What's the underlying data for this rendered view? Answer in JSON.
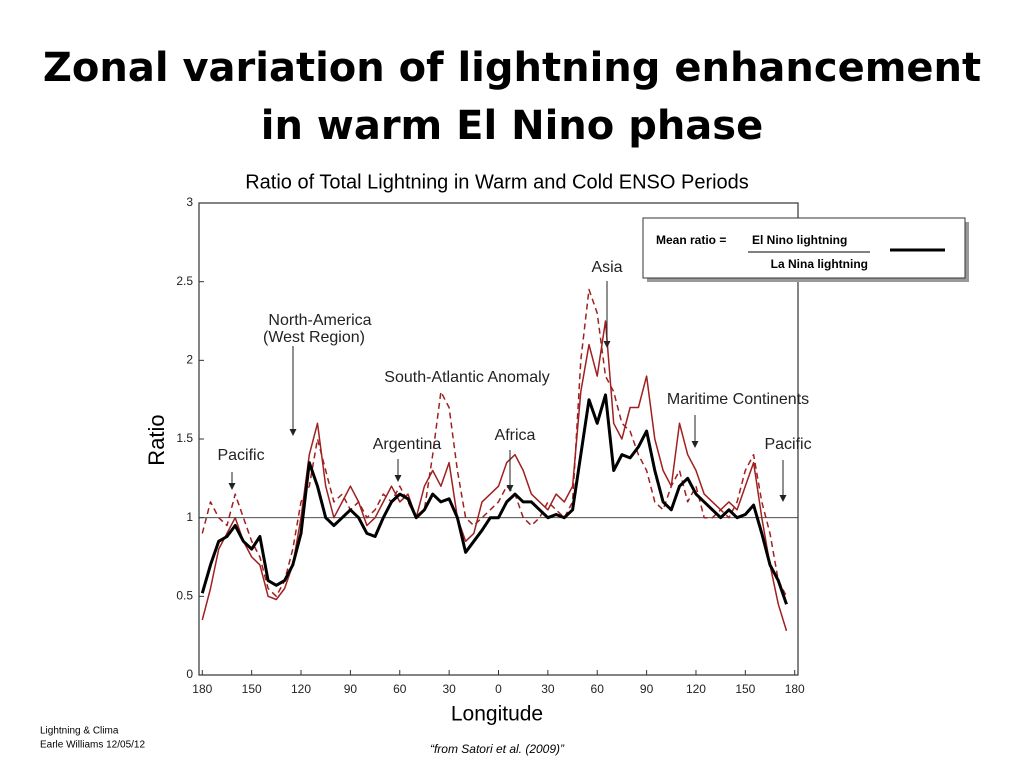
{
  "title": [
    "Zonal variation of lightning enhancement",
    "in warm El Nino phase"
  ],
  "footer": {
    "left": [
      "Lightning & Clima",
      "Earle Williams 12/05/12"
    ],
    "center": "“from Satori et al. (2009)”"
  },
  "chart_data": {
    "type": "line",
    "title": "Ratio of Total Lightning in Warm and Cold ENSO Periods",
    "x_label": "Longitude",
    "y_label": "Ratio",
    "legend": {
      "label": "Mean ratio =",
      "numerator": "El Nino lightning",
      "denominator": "La Nina lightning"
    },
    "annotations": [
      "Pacific",
      "North-America",
      "(West Region)",
      "South-Atlantic Anomaly",
      "Argentina",
      "Africa",
      "Asia",
      "Maritime Continents",
      "Pacific"
    ],
    "hline": 1,
    "xlim": [
      -182,
      182
    ],
    "ylim": [
      0,
      3
    ],
    "xticks": [
      {
        "value": -180,
        "label": "180"
      },
      {
        "value": -150,
        "label": "150"
      },
      {
        "value": -120,
        "label": "120"
      },
      {
        "value": -90,
        "label": "90"
      },
      {
        "value": -60,
        "label": "60"
      },
      {
        "value": -30,
        "label": "30"
      },
      0,
      30,
      60,
      90,
      120,
      150,
      180
    ],
    "yticks": [
      0,
      0.5,
      1,
      1.5,
      2,
      2.5,
      3
    ],
    "x": [
      -180,
      -175,
      -170,
      -165,
      -160,
      -155,
      -150,
      -145,
      -140,
      -135,
      -130,
      -125,
      -120,
      -115,
      -110,
      -105,
      -100,
      -95,
      -90,
      -85,
      -80,
      -75,
      -70,
      -65,
      -60,
      -55,
      -50,
      -45,
      -40,
      -35,
      -30,
      -25,
      -20,
      -15,
      -10,
      -5,
      0,
      5,
      10,
      15,
      20,
      25,
      30,
      35,
      40,
      45,
      50,
      55,
      60,
      65,
      70,
      75,
      80,
      85,
      90,
      95,
      100,
      105,
      110,
      115,
      120,
      125,
      130,
      135,
      140,
      145,
      150,
      155,
      160,
      165,
      170,
      175
    ],
    "series": [
      {
        "color": "#a02020",
        "dash": "6,4",
        "values": [
          0.9,
          1.1,
          1.0,
          0.95,
          1.15,
          1.0,
          0.85,
          0.75,
          0.55,
          0.5,
          0.6,
          0.8,
          1.1,
          1.2,
          1.5,
          1.3,
          1.1,
          1.15,
          1.05,
          1.1,
          1.0,
          1.05,
          1.15,
          1.1,
          1.2,
          1.1,
          1.0,
          1.05,
          1.4,
          1.8,
          1.7,
          1.3,
          1.0,
          0.95,
          1.0,
          1.05,
          1.1,
          1.2,
          1.15,
          1.0,
          0.95,
          1.0,
          1.1,
          1.05,
          1.0,
          1.1,
          2.0,
          2.45,
          2.3,
          1.9,
          1.8,
          1.6,
          1.55,
          1.4,
          1.3,
          1.1,
          1.05,
          1.2,
          1.3,
          1.1,
          1.2,
          1.0,
          1.0,
          1.05,
          1.0,
          1.1,
          1.3,
          1.4,
          1.1,
          0.9,
          0.6,
          0.5
        ]
      },
      {
        "color": "#a02020",
        "values": [
          0.35,
          0.55,
          0.8,
          0.9,
          1.0,
          0.85,
          0.75,
          0.7,
          0.5,
          0.48,
          0.55,
          0.7,
          1.0,
          1.4,
          1.6,
          1.2,
          1.0,
          1.1,
          1.2,
          1.1,
          0.95,
          1.0,
          1.1,
          1.2,
          1.1,
          1.15,
          1.0,
          1.2,
          1.3,
          1.2,
          1.35,
          1.0,
          0.85,
          0.9,
          1.1,
          1.15,
          1.2,
          1.35,
          1.4,
          1.3,
          1.15,
          1.1,
          1.05,
          1.15,
          1.1,
          1.2,
          1.8,
          2.1,
          1.9,
          2.25,
          1.6,
          1.5,
          1.7,
          1.7,
          1.9,
          1.5,
          1.3,
          1.2,
          1.6,
          1.4,
          1.3,
          1.15,
          1.1,
          1.05,
          1.1,
          1.05,
          1.2,
          1.35,
          1.0,
          0.7,
          0.45,
          0.28
        ]
      },
      {
        "color": "#000000",
        "width": 3,
        "values": [
          0.52,
          0.7,
          0.85,
          0.88,
          0.95,
          0.85,
          0.8,
          0.88,
          0.6,
          0.57,
          0.6,
          0.7,
          0.9,
          1.35,
          1.2,
          1.0,
          0.95,
          1.0,
          1.05,
          1.0,
          0.9,
          0.88,
          1.0,
          1.1,
          1.15,
          1.12,
          1.0,
          1.05,
          1.15,
          1.1,
          1.12,
          1.0,
          0.78,
          0.85,
          0.92,
          1.0,
          1.0,
          1.1,
          1.15,
          1.1,
          1.1,
          1.05,
          1.0,
          1.02,
          1.0,
          1.05,
          1.4,
          1.75,
          1.6,
          1.78,
          1.3,
          1.4,
          1.38,
          1.45,
          1.55,
          1.3,
          1.1,
          1.05,
          1.2,
          1.25,
          1.15,
          1.1,
          1.05,
          1.0,
          1.05,
          1.0,
          1.02,
          1.08,
          0.9,
          0.7,
          0.6,
          0.45
        ]
      }
    ]
  }
}
